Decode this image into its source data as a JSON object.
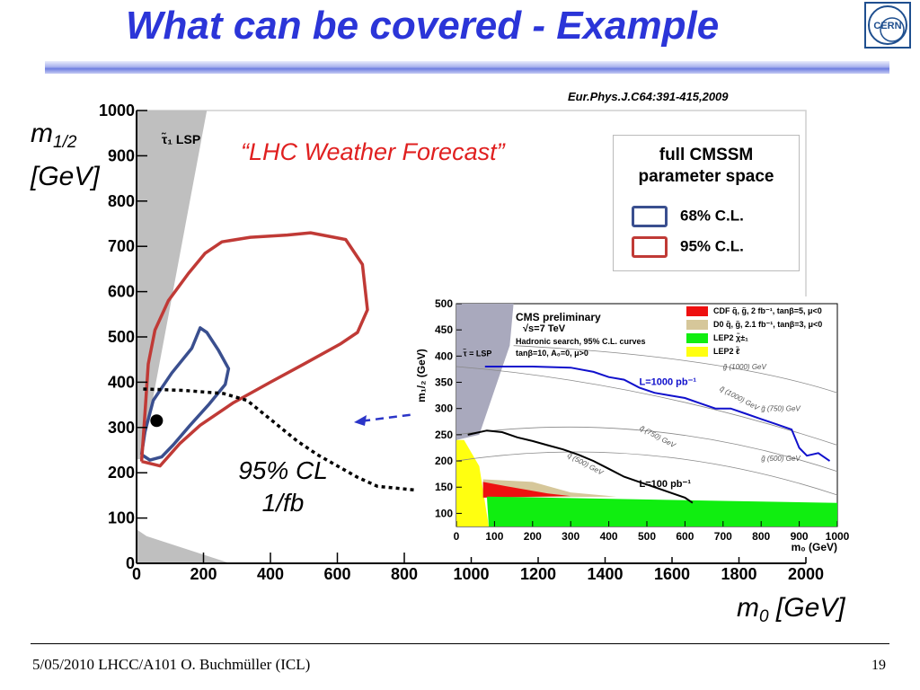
{
  "slide": {
    "title": "What can be covered - Example",
    "reference": "Eur.Phys.J.C64:391-415,2009",
    "forecast": "“LHC Weather Forecast”",
    "ylabel_main": "m",
    "ylabel_sub": "1/2",
    "ylabel_unit": "[GeV]",
    "xlabel_main": "m",
    "xlabel_sub": "0",
    "xlabel_unit": "[GeV]",
    "annotation_line1": "95% CL",
    "annotation_line2": "1/fb",
    "footer": "5/05/2010 LHCC/A101 O. Buchmüller (ICL)",
    "page": "19",
    "logo_text": "CERN"
  },
  "colors": {
    "title": "#2b35d8",
    "forecast": "#e02020",
    "cl68": "#3a4f8f",
    "cl95": "#c03a36",
    "excluded": "#bfbfbf",
    "inset_excluded": "#a9a9bd"
  },
  "chart_data": [
    {
      "type": "line",
      "title": "",
      "xlabel": "m0 [GeV]",
      "ylabel": "m1/2 [GeV]",
      "xlim": [
        0,
        2000
      ],
      "ylim": [
        0,
        1000
      ],
      "x_ticks": [
        0,
        200,
        400,
        600,
        800,
        1000,
        1200,
        1400,
        1600,
        1800,
        2000
      ],
      "y_ticks": [
        0,
        100,
        200,
        300,
        400,
        500,
        600,
        700,
        800,
        900,
        1000
      ],
      "region_label": "τ̃₁ LSP",
      "legend": {
        "title_line1": "full CMSSM",
        "title_line2": "parameter space",
        "items": [
          "68% C.L.",
          "95% C.L."
        ]
      },
      "best_fit": {
        "x": 60,
        "y": 315
      },
      "series": [
        {
          "name": "68% C.L.",
          "points": [
            [
              15,
              240
            ],
            [
              40,
              228
            ],
            [
              75,
              235
            ],
            [
              110,
              262
            ],
            [
              160,
              305
            ],
            [
              215,
              350
            ],
            [
              265,
              395
            ],
            [
              275,
              430
            ],
            [
              245,
              470
            ],
            [
              210,
              510
            ],
            [
              190,
              520
            ],
            [
              165,
              475
            ],
            [
              105,
              420
            ],
            [
              50,
              360
            ],
            [
              25,
              290
            ],
            [
              15,
              240
            ]
          ]
        },
        {
          "name": "95% C.L.",
          "points": [
            [
              15,
              225
            ],
            [
              70,
              215
            ],
            [
              130,
              265
            ],
            [
              190,
              305
            ],
            [
              290,
              355
            ],
            [
              400,
              400
            ],
            [
              500,
              440
            ],
            [
              610,
              485
            ],
            [
              660,
              510
            ],
            [
              690,
              560
            ],
            [
              675,
              660
            ],
            [
              625,
              715
            ],
            [
              520,
              730
            ],
            [
              450,
              725
            ],
            [
              340,
              720
            ],
            [
              255,
              710
            ],
            [
              205,
              685
            ],
            [
              155,
              640
            ],
            [
              95,
              580
            ],
            [
              55,
              515
            ],
            [
              35,
              440
            ],
            [
              25,
              330
            ],
            [
              15,
              225
            ]
          ]
        },
        {
          "name": "95% CL 1/fb",
          "points": [
            [
              20,
              385
            ],
            [
              140,
              382
            ],
            [
              260,
              375
            ],
            [
              330,
              360
            ],
            [
              380,
              330
            ],
            [
              430,
              300
            ],
            [
              480,
              270
            ],
            [
              540,
              240
            ],
            [
              600,
              215
            ],
            [
              660,
              190
            ],
            [
              720,
              170
            ],
            [
              860,
              160
            ]
          ]
        }
      ]
    },
    {
      "type": "line",
      "title": "CMS preliminary",
      "subtitle": "√s=7 TeV",
      "note": "Hadronic search, 95% C.L. curves",
      "params": "tanβ=10, A₀=0, μ>0",
      "xlabel": "m₀ (GeV)",
      "ylabel": "m₁/₂ (GeV)",
      "xlim": [
        0,
        1000
      ],
      "ylim": [
        75,
        500
      ],
      "x_ticks": [
        0,
        100,
        200,
        300,
        400,
        500,
        600,
        700,
        800,
        900,
        1000
      ],
      "y_ticks": [
        100,
        150,
        200,
        250,
        300,
        350,
        400,
        450,
        500
      ],
      "region_label": "τ̃ = LSP",
      "legend_items": [
        {
          "label": "CDF",
          "detail": "q̃, g̃, 2 fb⁻¹, tanβ=5, μ<0",
          "color": "#ee1010"
        },
        {
          "label": "D0",
          "detail": "q̃, g̃, 2.1 fb⁻¹, tanβ=3, μ<0",
          "color": "#d6c79a"
        },
        {
          "label": "LEP2",
          "detail": "χ̃±₁",
          "color": "#10ee10"
        },
        {
          "label": "LEP2",
          "detail": "ℓ̃",
          "color": "#ffff10"
        }
      ],
      "contour_labels": [
        "g̃ (1000) GeV",
        "q̃ (1000) GeV",
        "g̃ (750) GeV",
        "q̃ (750) GeV",
        "g̃ (500) GeV",
        "q̃ (500) GeV"
      ],
      "series": [
        {
          "name": "L=1000 pb⁻¹",
          "color": "#1010cc",
          "points": [
            [
              75,
              380
            ],
            [
              200,
              380
            ],
            [
              300,
              378
            ],
            [
              360,
              370
            ],
            [
              400,
              360
            ],
            [
              440,
              355
            ],
            [
              480,
              340
            ],
            [
              520,
              330
            ],
            [
              560,
              325
            ],
            [
              600,
              320
            ],
            [
              640,
              310
            ],
            [
              680,
              300
            ],
            [
              720,
              300
            ],
            [
              760,
              290
            ],
            [
              800,
              280
            ],
            [
              840,
              270
            ],
            [
              880,
              260
            ],
            [
              900,
              225
            ],
            [
              920,
              210
            ],
            [
              950,
              215
            ],
            [
              980,
              200
            ]
          ]
        },
        {
          "name": "L=100 pb⁻¹",
          "color": "#000000",
          "points": [
            [
              30,
              250
            ],
            [
              80,
              258
            ],
            [
              120,
              255
            ],
            [
              160,
              245
            ],
            [
              200,
              238
            ],
            [
              240,
              230
            ],
            [
              280,
              222
            ],
            [
              320,
              212
            ],
            [
              360,
              200
            ],
            [
              400,
              185
            ],
            [
              440,
              170
            ],
            [
              480,
              160
            ],
            [
              520,
              150
            ],
            [
              560,
              140
            ],
            [
              600,
              130
            ],
            [
              620,
              120
            ]
          ]
        }
      ]
    }
  ]
}
